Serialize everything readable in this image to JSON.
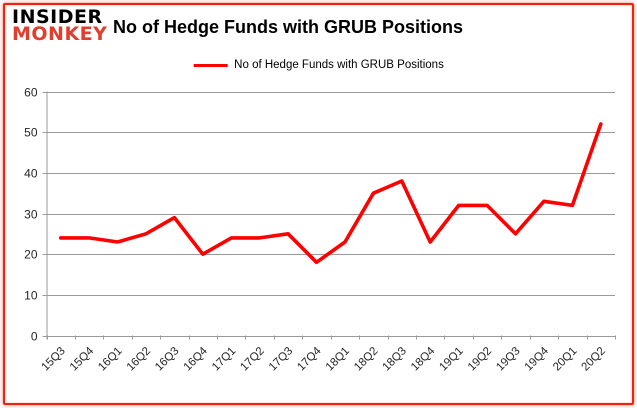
{
  "logo": {
    "line1": "INSIDER",
    "line2": "MONKEY"
  },
  "header": {
    "title": "No of Hedge Funds with GRUB Positions"
  },
  "legend": {
    "label": "No of Hedge Funds with GRUB Positions"
  },
  "colors": {
    "line": "#ff0000",
    "logo_red": "#e23e2e",
    "border": "#f2210c",
    "grid": "#9a9a9a",
    "tick_text": "#262626"
  },
  "chart_data": {
    "type": "line",
    "title": "No of Hedge Funds with GRUB Positions",
    "series_name": "No of Hedge Funds with GRUB Positions",
    "categories": [
      "15Q3",
      "15Q4",
      "16Q1",
      "16Q2",
      "16Q3",
      "16Q4",
      "17Q1",
      "17Q2",
      "17Q3",
      "17Q4",
      "18Q1",
      "18Q2",
      "18Q3",
      "18Q4",
      "19Q1",
      "19Q2",
      "19Q3",
      "19Q4",
      "20Q1",
      "20Q2"
    ],
    "values": [
      24,
      24,
      23,
      25,
      29,
      20,
      24,
      24,
      25,
      18,
      23,
      35,
      38,
      23,
      32,
      32,
      25,
      33,
      32,
      52
    ],
    "xlabel": "",
    "ylabel": "",
    "ylim": [
      0,
      60
    ],
    "ytick_step": 10,
    "grid": true,
    "legend_position": "top",
    "line_color": "#ff0000"
  }
}
